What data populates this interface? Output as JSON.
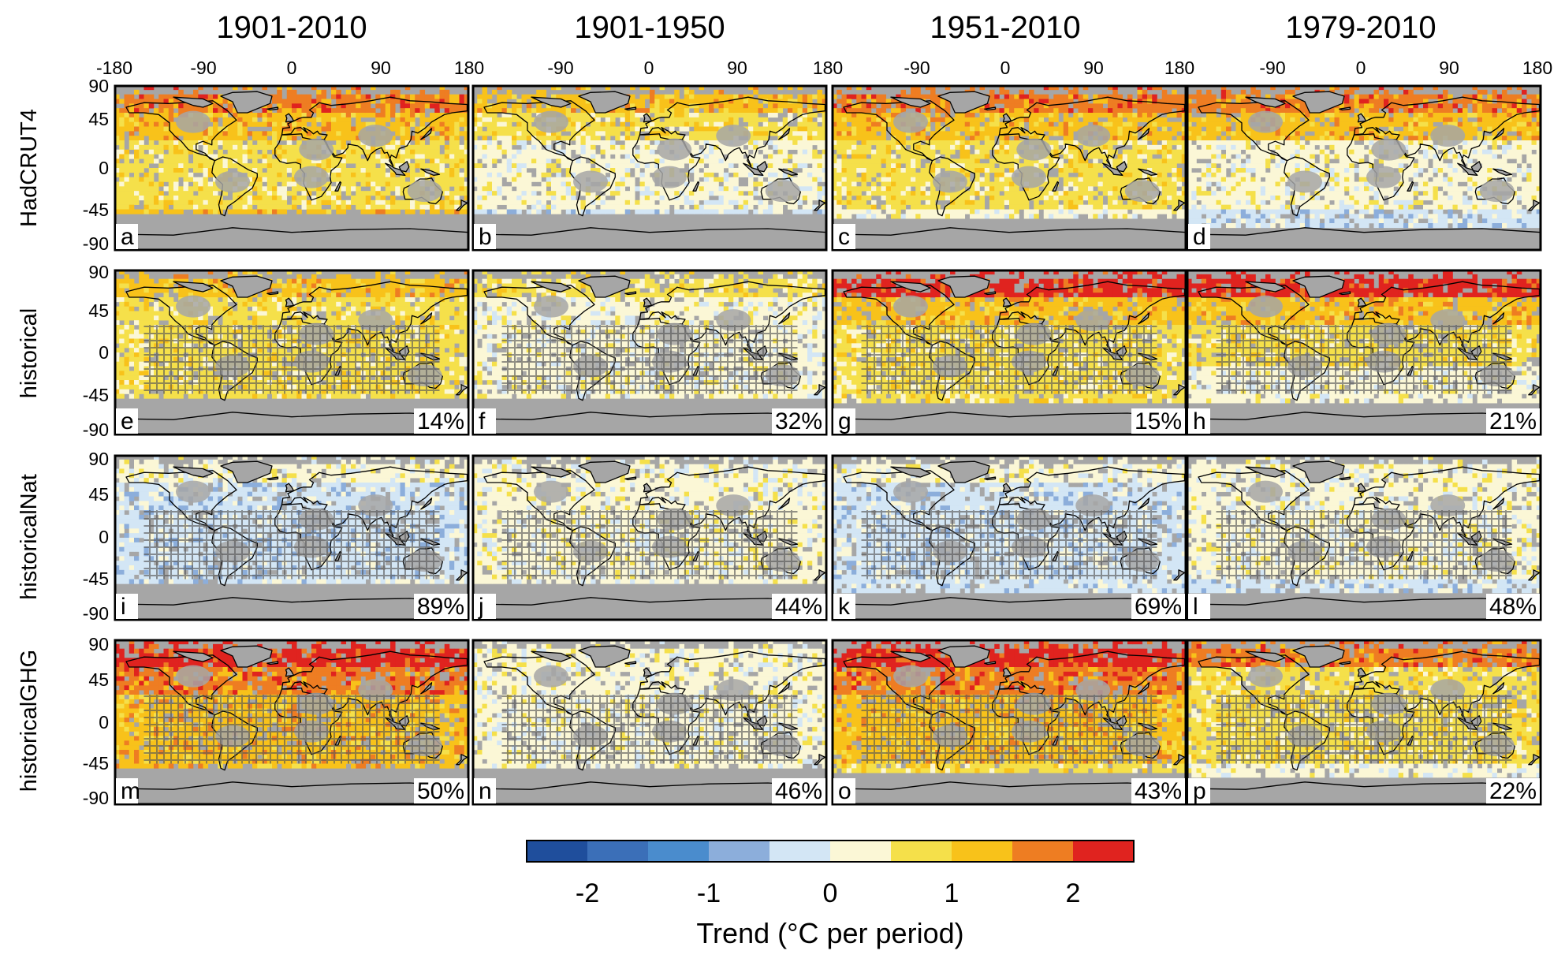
{
  "figure": {
    "column_titles": [
      "1901-2010",
      "1901-1950",
      "1951-2010",
      "1979-2010"
    ],
    "row_labels": [
      "HadCRUT4",
      "historical",
      "historicalNat",
      "historicalGHG"
    ],
    "x_ticks": [
      "-180",
      "-90",
      "0",
      "90",
      "180"
    ],
    "y_ticks": [
      "90",
      "45",
      "0",
      "-45",
      "-90"
    ],
    "panels": [
      {
        "letter": "a",
        "row": 0,
        "col": 0,
        "percent": ""
      },
      {
        "letter": "b",
        "row": 0,
        "col": 1,
        "percent": ""
      },
      {
        "letter": "c",
        "row": 0,
        "col": 2,
        "percent": ""
      },
      {
        "letter": "d",
        "row": 0,
        "col": 3,
        "percent": ""
      },
      {
        "letter": "e",
        "row": 1,
        "col": 0,
        "percent": "14%"
      },
      {
        "letter": "f",
        "row": 1,
        "col": 1,
        "percent": "32%"
      },
      {
        "letter": "g",
        "row": 1,
        "col": 2,
        "percent": "15%"
      },
      {
        "letter": "h",
        "row": 1,
        "col": 3,
        "percent": "21%"
      },
      {
        "letter": "i",
        "row": 2,
        "col": 0,
        "percent": "89%"
      },
      {
        "letter": "j",
        "row": 2,
        "col": 1,
        "percent": "44%"
      },
      {
        "letter": "k",
        "row": 2,
        "col": 2,
        "percent": "69%"
      },
      {
        "letter": "l",
        "row": 2,
        "col": 3,
        "percent": "48%"
      },
      {
        "letter": "m",
        "row": 3,
        "col": 0,
        "percent": "50%"
      },
      {
        "letter": "n",
        "row": 3,
        "col": 1,
        "percent": "46%"
      },
      {
        "letter": "o",
        "row": 3,
        "col": 2,
        "percent": "43%"
      },
      {
        "letter": "p",
        "row": 3,
        "col": 3,
        "percent": "22%"
      }
    ],
    "colorbar": {
      "colors": [
        "#1f4e9c",
        "#3b6fb8",
        "#4a8ccd",
        "#8caedb",
        "#d3e6f5",
        "#fbf7d6",
        "#f5e04a",
        "#f8c21a",
        "#ee7d22",
        "#e0231f"
      ],
      "ticks": [
        "-2",
        "-1",
        "0",
        "1",
        "2"
      ],
      "label": "Trend (°C per period)"
    },
    "map_colors": {
      "no_data": "#a6a6a6",
      "coast": "#000000"
    }
  }
}
